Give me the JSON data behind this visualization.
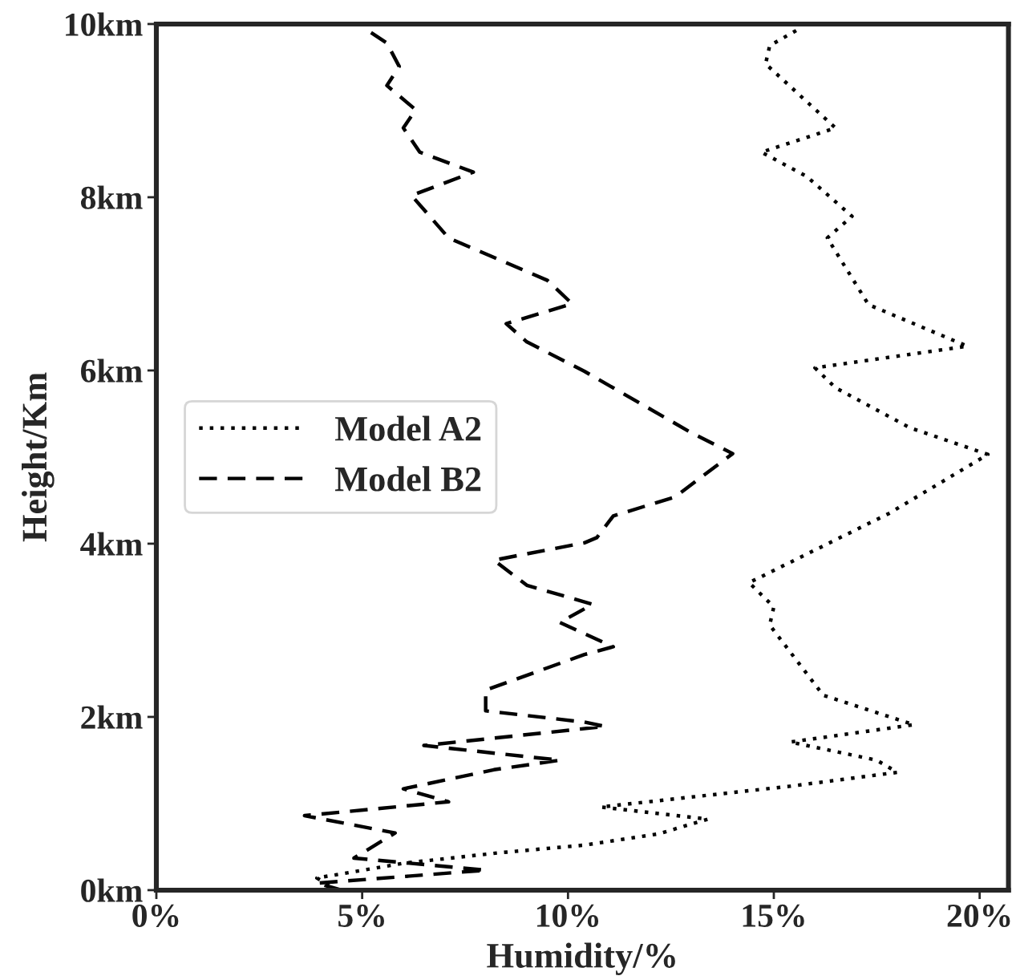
{
  "chart_data": {
    "type": "line",
    "xlabel": "Humidity/%",
    "ylabel": "Height/Km",
    "xlim": [
      0,
      20.7
    ],
    "ylim": [
      0,
      10
    ],
    "xticks": [
      {
        "value": 0,
        "label": "0%"
      },
      {
        "value": 5,
        "label": "5%"
      },
      {
        "value": 10,
        "label": "10%"
      },
      {
        "value": 15,
        "label": "15%"
      },
      {
        "value": 20,
        "label": "20%"
      }
    ],
    "yticks": [
      {
        "value": 0,
        "label": "0km"
      },
      {
        "value": 2,
        "label": "2km"
      },
      {
        "value": 4,
        "label": "4km"
      },
      {
        "value": 6,
        "label": "6km"
      },
      {
        "value": 8,
        "label": "8km"
      },
      {
        "value": 10,
        "label": "10km"
      }
    ],
    "grid": false,
    "legend": "center left",
    "series": [
      {
        "name": "Model A2",
        "color": "#000000",
        "line_style": "dotted",
        "x": [
          4.2,
          3.9,
          6.0,
          8.3,
          10.4,
          12.2,
          13.4,
          10.8,
          15.4,
          18.0,
          17.5,
          15.4,
          18.4,
          16.2,
          14.9,
          15.0,
          14.4,
          17.8,
          20.2,
          18.3,
          16.5,
          16.0,
          19.7,
          17.3,
          16.3,
          16.9,
          15.8,
          14.7,
          16.5,
          14.8,
          14.9,
          15.6
        ],
        "values": [
          0.06,
          0.14,
          0.31,
          0.43,
          0.52,
          0.65,
          0.82,
          0.96,
          1.2,
          1.36,
          1.5,
          1.71,
          1.91,
          2.25,
          3.06,
          3.27,
          3.55,
          4.35,
          5.03,
          5.34,
          5.8,
          6.03,
          6.28,
          6.76,
          7.53,
          7.78,
          8.24,
          8.52,
          8.8,
          9.54,
          9.75,
          9.94
        ]
      },
      {
        "name": "Model B2",
        "color": "#000000",
        "line_style": "dashed",
        "x": [
          4.5,
          3.9,
          8.0,
          4.8,
          5.8,
          3.6,
          7.1,
          6.0,
          8.2,
          9.8,
          6.5,
          10.9,
          10.4,
          8.0,
          8.0,
          10.4,
          11.1,
          9.8,
          10.6,
          9.0,
          8.2,
          10.4,
          10.7,
          11.1,
          12.6,
          14.0,
          13.0,
          10.4,
          9.0,
          8.5,
          10.1,
          9.5,
          7.1,
          6.2,
          7.7,
          6.4,
          6.0,
          6.3,
          5.6,
          5.9,
          5.6,
          5.0
        ],
        "values": [
          0.0,
          0.08,
          0.23,
          0.37,
          0.66,
          0.86,
          1.02,
          1.17,
          1.39,
          1.5,
          1.67,
          1.89,
          1.94,
          2.07,
          2.31,
          2.72,
          2.81,
          3.09,
          3.3,
          3.52,
          3.81,
          4.01,
          4.07,
          4.32,
          4.54,
          5.04,
          5.28,
          5.99,
          6.33,
          6.54,
          6.77,
          7.04,
          7.53,
          8.02,
          8.29,
          8.52,
          8.8,
          9.01,
          9.29,
          9.51,
          9.78,
          9.97
        ]
      }
    ]
  }
}
